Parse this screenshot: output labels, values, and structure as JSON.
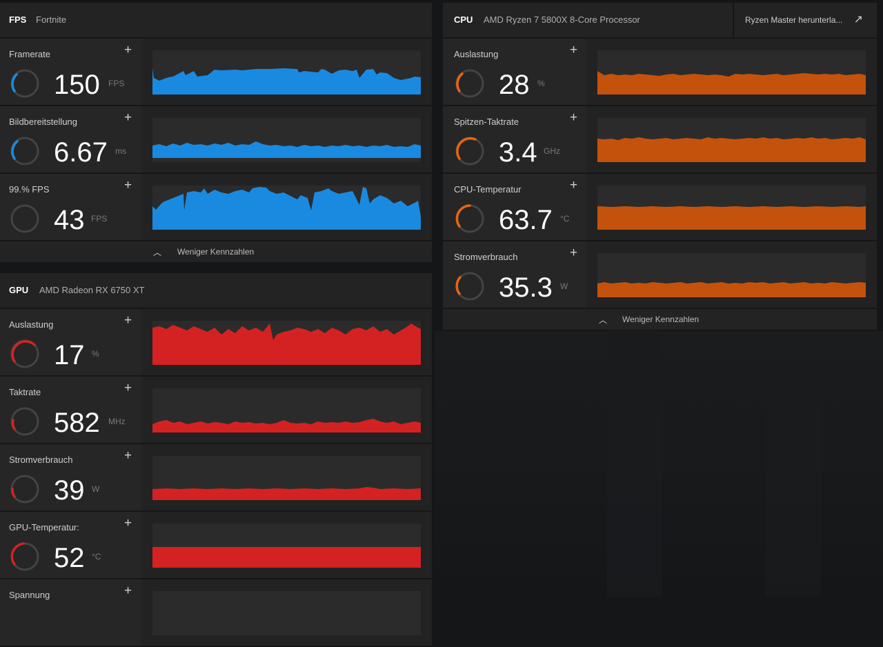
{
  "fps_panel": {
    "title": "FPS",
    "subtitle": "Fortnite",
    "footer_label": "Weniger Kennzahlen",
    "color": "#1a8ae0",
    "metrics": [
      {
        "label": "Framerate",
        "value": "150",
        "unit": "FPS",
        "gauge": 0.35
      },
      {
        "label": "Bildbereitstellung",
        "value": "6.67",
        "unit": "ms",
        "gauge": 0.3
      },
      {
        "label": "99.% FPS",
        "value": "43",
        "unit": "FPS",
        "gauge": 0.0
      }
    ]
  },
  "gpu_panel": {
    "title": "GPU",
    "subtitle": "AMD Radeon RX 6750 XT",
    "color": "#d42222",
    "metrics": [
      {
        "label": "Auslastung",
        "value": "17",
        "unit": "%",
        "gauge": 0.55
      },
      {
        "label": "Taktrate",
        "value": "582",
        "unit": "MHz",
        "gauge": 0.25
      },
      {
        "label": "Stromverbrauch",
        "value": "39",
        "unit": "W",
        "gauge": 0.25
      },
      {
        "label": "GPU-Temperatur:",
        "value": "52",
        "unit": "°C",
        "gauge": 0.45
      },
      {
        "label": "Spannung",
        "value": "",
        "unit": "",
        "gauge": 0.0
      }
    ]
  },
  "cpu_panel": {
    "title": "CPU",
    "subtitle": "AMD Ryzen 7 5800X 8-Core Processor",
    "link_label": "Ryzen Master herunterla...",
    "footer_label": "Weniger Kennzahlen",
    "color": "#e8650f",
    "metrics": [
      {
        "label": "Auslastung",
        "value": "28",
        "unit": "%",
        "gauge": 0.35
      },
      {
        "label": "Spitzen-Taktrate",
        "value": "3.4",
        "unit": "GHz",
        "gauge": 0.6
      },
      {
        "label": "CPU-Temperatur",
        "value": "63.7",
        "unit": "°C",
        "gauge": 0.5
      },
      {
        "label": "Stromverbrauch",
        "value": "35.3",
        "unit": "W",
        "gauge": 0.3
      }
    ]
  },
  "icons": {
    "add": "plus-icon",
    "collapse": "chevron-up-icon",
    "external": "external-link-icon"
  }
}
